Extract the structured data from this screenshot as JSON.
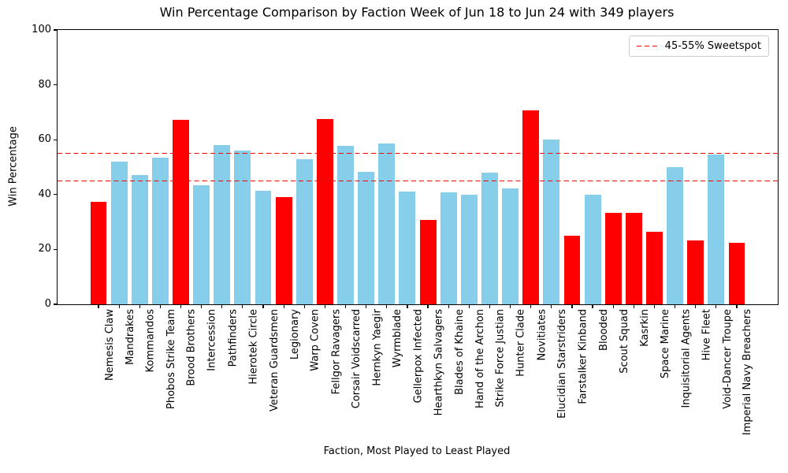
{
  "chart_data": {
    "type": "bar",
    "title": "Win Percentage Comparison by Faction Week of Jun 18 to Jun 24 with 349 players",
    "xlabel": "Faction, Most Played to Least Played",
    "ylabel": "Win Percentage",
    "ylim": [
      0,
      100
    ],
    "yticks": [
      0,
      20,
      40,
      60,
      80,
      100
    ],
    "grid": false,
    "legend": {
      "label": "45-55% Sweetspot",
      "position": "upper right"
    },
    "sweetspot_lines": {
      "values": [
        45,
        55
      ],
      "style": "dashed",
      "color": "#ff0000"
    },
    "bar_width_fraction": 0.8,
    "colors_meaning": {
      "#87ceeb": "skyblue bar",
      "#ff0000": "red bar"
    },
    "categories": [
      "Nemesis Claw",
      "Mandrakes",
      "Kommandos",
      "Phobos Strike Team",
      "Brood Brothers",
      "Intercession",
      "Pathfinders",
      "Hierotek Circle",
      "Veteran Guardsmen",
      "Legionary",
      "Warp Coven",
      "Fellgor Ravagers",
      "Corsair Voidscarred",
      "Hernkyn Yaegir",
      "Wyrmblade",
      "Gellerpox Infected",
      "Hearthkyn Salvagers",
      "Blades of Khaine",
      "Hand of the Archon",
      "Strike Force Justian",
      "Hunter Clade",
      "Novitiates",
      "Elucidian Starstriders",
      "Farstalker Kinband",
      "Blooded",
      "Scout Squad",
      "Kasrkin",
      "Space Marine",
      "Inquisitorial Agents",
      "Hive Fleet",
      "Void-Dancer Troupe",
      "Imperial Navy Breachers"
    ],
    "values": [
      37.4,
      51.9,
      47.0,
      53.4,
      67.3,
      43.5,
      58.0,
      55.9,
      41.3,
      39.0,
      52.9,
      67.6,
      57.8,
      48.4,
      58.6,
      41.0,
      30.7,
      40.7,
      39.9,
      47.9,
      42.3,
      70.7,
      60.0,
      25.0,
      39.9,
      33.3,
      33.3,
      26.5,
      50.1,
      23.4,
      54.5,
      22.4
    ],
    "colors": [
      "#ff0000",
      "#87ceeb",
      "#87ceeb",
      "#87ceeb",
      "#ff0000",
      "#87ceeb",
      "#87ceeb",
      "#87ceeb",
      "#87ceeb",
      "#ff0000",
      "#87ceeb",
      "#ff0000",
      "#87ceeb",
      "#87ceeb",
      "#87ceeb",
      "#87ceeb",
      "#ff0000",
      "#87ceeb",
      "#87ceeb",
      "#87ceeb",
      "#87ceeb",
      "#ff0000",
      "#87ceeb",
      "#ff0000",
      "#87ceeb",
      "#ff0000",
      "#ff0000",
      "#ff0000",
      "#87ceeb",
      "#ff0000",
      "#87ceeb",
      "#ff0000"
    ]
  }
}
